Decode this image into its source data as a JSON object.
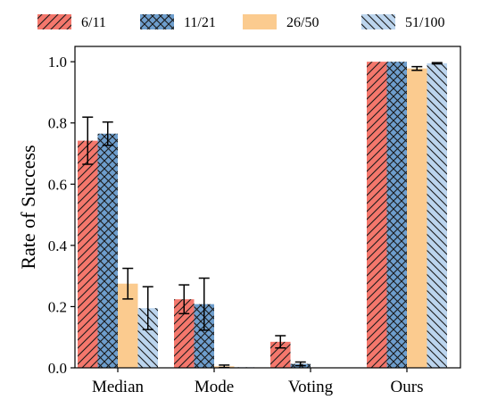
{
  "chart_data": {
    "type": "bar",
    "title": "",
    "xlabel": "",
    "ylabel": "Rate of Success",
    "ylim": [
      0,
      1.05
    ],
    "yticks": [
      "0.0",
      "0.2",
      "0.4",
      "0.6",
      "0.8",
      "1.0"
    ],
    "categories": [
      "Median",
      "Mode",
      "Voting",
      "Ours"
    ],
    "legend_position": "top",
    "grid": false,
    "series": [
      {
        "name": "6/11",
        "color": "#f4776c",
        "hatch": "forward-diagonal",
        "values": [
          0.742,
          0.224,
          0.085,
          1.0
        ],
        "errors": [
          0.077,
          0.047,
          0.02,
          0.0
        ]
      },
      {
        "name": "11/21",
        "color": "#6e9ecd",
        "hatch": "crosshatch",
        "values": [
          0.765,
          0.208,
          0.013,
          1.0
        ],
        "errors": [
          0.038,
          0.085,
          0.006,
          0.0
        ]
      },
      {
        "name": "26/50",
        "color": "#fbcb8f",
        "hatch": "none",
        "values": [
          0.275,
          0.005,
          0.001,
          0.978
        ],
        "errors": [
          0.05,
          0.004,
          0.001,
          0.006
        ]
      },
      {
        "name": "51/100",
        "color": "#bcd5ee",
        "hatch": "back-diagonal",
        "values": [
          0.195,
          0.002,
          0.001,
          0.995
        ],
        "errors": [
          0.07,
          0.001,
          0.001,
          0.002
        ]
      }
    ]
  }
}
